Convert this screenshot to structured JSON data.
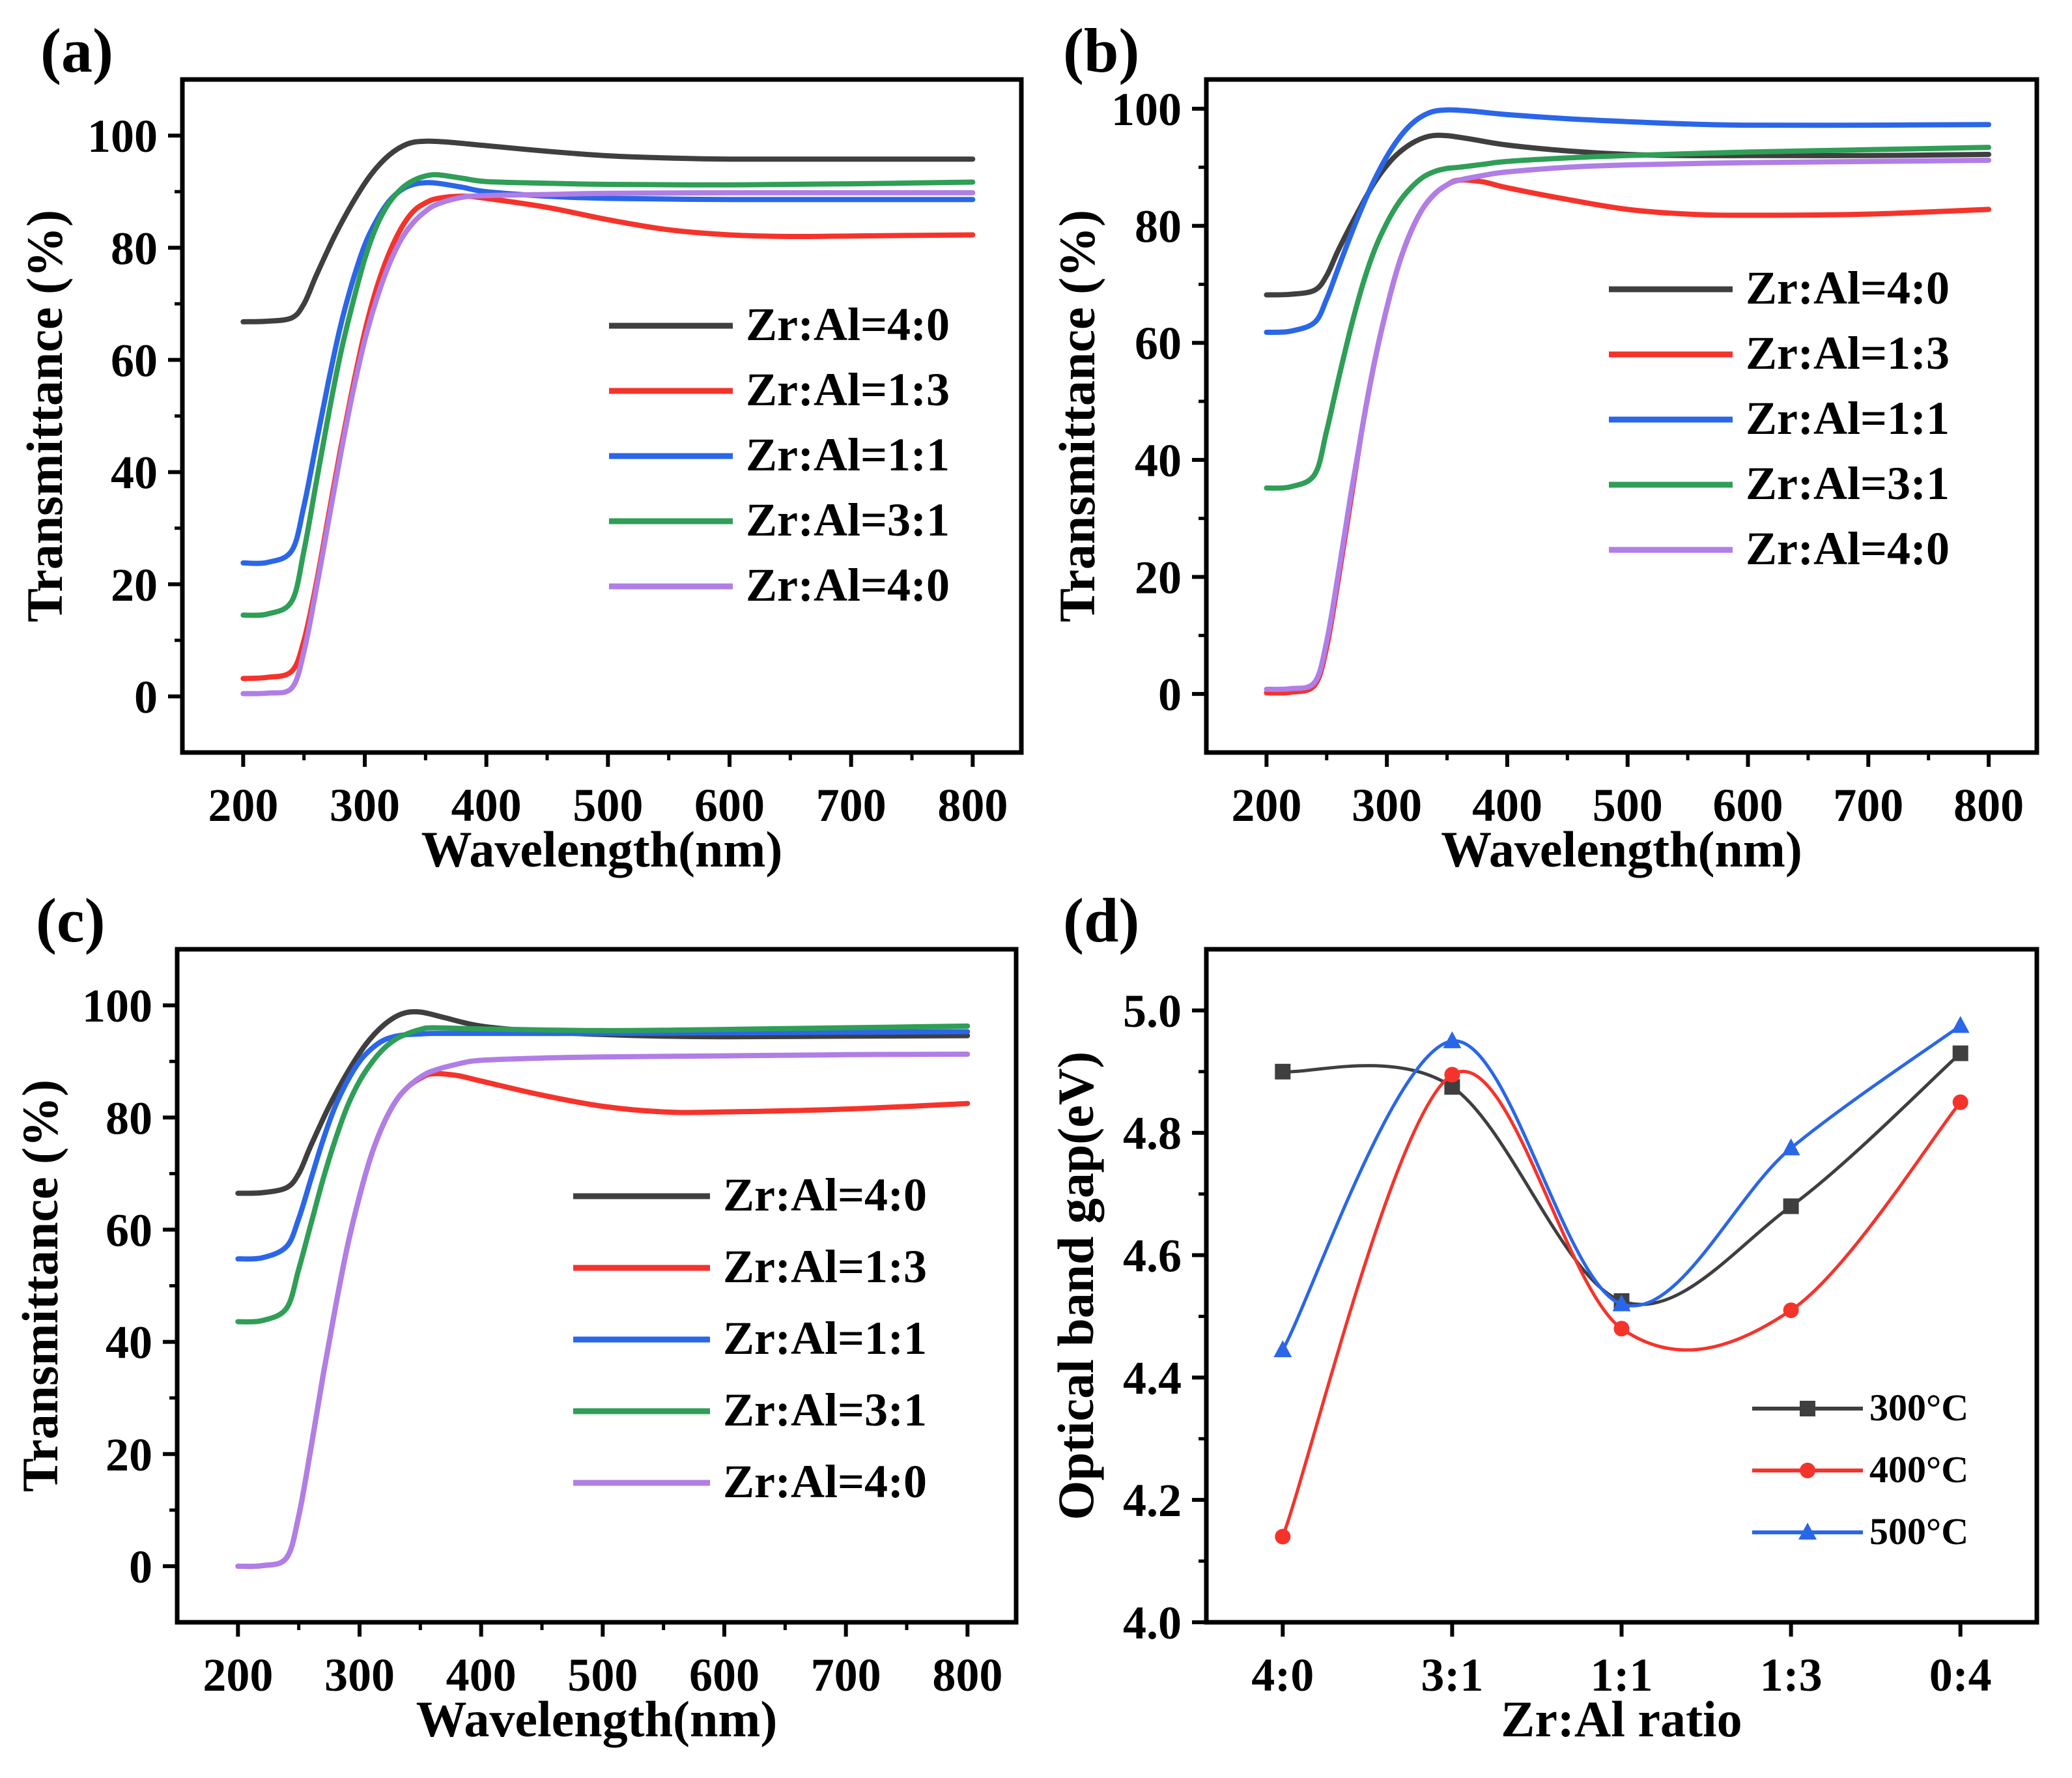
{
  "figure": {
    "colors": {
      "black": "#3f3f3f",
      "red": "#f5332b",
      "blue": "#2a66e8",
      "green": "#2f9e56",
      "purple": "#b07ee6"
    }
  },
  "chart_data": [
    {
      "panel": "(a)",
      "type": "line",
      "title": "",
      "xlabel": "Wavelength(nm)",
      "ylabel": "Transmittance (%)",
      "xlim": [
        150,
        840
      ],
      "ylim": [
        -10,
        110
      ],
      "xticks": [
        200,
        300,
        400,
        500,
        600,
        700,
        800
      ],
      "yticks": [
        0,
        20,
        40,
        60,
        80,
        100
      ],
      "legend_position": "center-right",
      "series": [
        {
          "name": "Zr:Al=4:0",
          "color": "black",
          "x": [
            200,
            220,
            240,
            250,
            260,
            275,
            290,
            305,
            320,
            335,
            350,
            370,
            400,
            450,
            500,
            550,
            600,
            700,
            800
          ],
          "y": [
            66.8,
            66.9,
            67.5,
            70,
            75,
            82,
            88,
            93,
            96.5,
            98.5,
            99,
            98.8,
            98.2,
            97.2,
            96.4,
            96,
            95.8,
            95.8,
            95.8
          ]
        },
        {
          "name": "Zr:Al=1:3",
          "color": "red",
          "x": [
            200,
            220,
            240,
            250,
            260,
            270,
            280,
            290,
            300,
            310,
            320,
            330,
            340,
            350,
            360,
            380,
            400,
            450,
            500,
            550,
            600,
            650,
            700,
            800
          ],
          "y": [
            3.2,
            3.4,
            4.5,
            10,
            20,
            32,
            44,
            55,
            65,
            73,
            79,
            83.5,
            86.5,
            88,
            88.8,
            89.2,
            88.8,
            87.2,
            85,
            83.2,
            82.3,
            82,
            82.1,
            82.3
          ]
        },
        {
          "name": "Zr:Al=1:1",
          "color": "blue",
          "x": [
            200,
            220,
            240,
            250,
            260,
            270,
            280,
            290,
            300,
            310,
            320,
            330,
            340,
            350,
            360,
            380,
            400,
            450,
            500,
            600,
            700,
            800
          ],
          "y": [
            23.8,
            23.9,
            26,
            34,
            45,
            56,
            66,
            74,
            80.5,
            85,
            88.3,
            90.3,
            91.3,
            91.6,
            91.5,
            90.8,
            90,
            89.2,
            88.8,
            88.6,
            88.6,
            88.6
          ]
        },
        {
          "name": "Zr:Al=3:1",
          "color": "green",
          "x": [
            200,
            220,
            240,
            250,
            260,
            270,
            280,
            290,
            300,
            310,
            320,
            330,
            340,
            350,
            360,
            380,
            400,
            450,
            500,
            600,
            700,
            800
          ],
          "y": [
            14.5,
            14.7,
            17,
            26,
            38,
            50,
            61,
            70,
            78,
            84,
            88,
            90.5,
            92,
            92.8,
            93,
            92.4,
            91.8,
            91.5,
            91.3,
            91.2,
            91.4,
            91.7
          ]
        },
        {
          "name": "Zr:Al=4:0",
          "color": "purple",
          "x": [
            200,
            220,
            240,
            250,
            260,
            270,
            280,
            290,
            300,
            310,
            320,
            330,
            340,
            350,
            360,
            380,
            400,
            450,
            500,
            600,
            700,
            800
          ],
          "y": [
            0.5,
            0.6,
            1.5,
            8,
            19,
            31,
            43,
            54,
            63.5,
            71,
            77,
            81.5,
            84.5,
            86.5,
            87.8,
            89,
            89.3,
            89.5,
            89.7,
            89.8,
            89.8,
            89.8
          ]
        }
      ]
    },
    {
      "panel": "(b)",
      "type": "line",
      "title": "",
      "xlabel": "Wavelength(nm)",
      "ylabel": "Transmittance (%)",
      "xlim": [
        150,
        840
      ],
      "ylim": [
        -10,
        105
      ],
      "xticks": [
        200,
        300,
        400,
        500,
        600,
        700,
        800
      ],
      "yticks": [
        0,
        20,
        40,
        60,
        80,
        100
      ],
      "legend_position": "center-right",
      "series": [
        {
          "name": "Zr:Al=4:0",
          "color": "black",
          "x": [
            200,
            220,
            240,
            250,
            260,
            275,
            290,
            305,
            320,
            335,
            350,
            370,
            400,
            450,
            500,
            550,
            600,
            700,
            800
          ],
          "y": [
            68.2,
            68.3,
            69,
            71.5,
            76,
            82,
            87.5,
            91.5,
            94,
            95.3,
            95.4,
            94.8,
            93.8,
            92.8,
            92.2,
            92,
            92,
            92,
            92.2
          ]
        },
        {
          "name": "Zr:Al=1:3",
          "color": "red",
          "x": [
            200,
            220,
            240,
            250,
            260,
            270,
            280,
            290,
            300,
            310,
            320,
            330,
            340,
            350,
            360,
            380,
            400,
            450,
            500,
            550,
            600,
            700,
            800
          ],
          "y": [
            0.2,
            0.3,
            1.5,
            8,
            20,
            33,
            46,
            57,
            66,
            73.5,
            79,
            83,
            85.5,
            87,
            87.8,
            87.5,
            86.5,
            84.5,
            82.8,
            82,
            81.8,
            82,
            82.8
          ]
        },
        {
          "name": "Zr:Al=1:1",
          "color": "blue",
          "x": [
            200,
            220,
            240,
            250,
            260,
            275,
            290,
            305,
            320,
            335,
            350,
            370,
            400,
            450,
            500,
            550,
            600,
            700,
            800
          ],
          "y": [
            61.8,
            62,
            63.5,
            67.5,
            73,
            81,
            88,
            93.5,
            97.3,
            99.3,
            99.8,
            99.6,
            99,
            98.3,
            97.8,
            97.4,
            97.2,
            97.2,
            97.3
          ]
        },
        {
          "name": "Zr:Al=3:1",
          "color": "green",
          "x": [
            200,
            220,
            240,
            250,
            260,
            270,
            280,
            290,
            300,
            310,
            320,
            330,
            340,
            350,
            360,
            380,
            400,
            450,
            500,
            600,
            700,
            800
          ],
          "y": [
            35.2,
            35.4,
            37.5,
            45,
            54,
            62.5,
            70,
            76,
            80.5,
            84,
            86.5,
            88.3,
            89.3,
            89.8,
            90,
            90.5,
            91,
            91.6,
            92,
            92.6,
            93,
            93.4
          ]
        },
        {
          "name": "Zr:Al=4:0",
          "color": "purple",
          "x": [
            200,
            220,
            240,
            250,
            260,
            270,
            280,
            290,
            300,
            310,
            320,
            330,
            340,
            350,
            360,
            380,
            400,
            450,
            500,
            600,
            700,
            800
          ],
          "y": [
            0.8,
            0.9,
            2,
            9,
            21,
            34,
            46,
            57,
            66,
            73.5,
            79,
            83,
            85.5,
            87,
            87.8,
            88.6,
            89.2,
            90,
            90.4,
            90.8,
            91,
            91.2
          ]
        }
      ]
    },
    {
      "panel": "(c)",
      "type": "line",
      "title": "",
      "xlabel": "Wavelength(nm)",
      "ylabel": "Transmittance (%)",
      "xlim": [
        150,
        840
      ],
      "ylim": [
        -10,
        110
      ],
      "xticks": [
        200,
        300,
        400,
        500,
        600,
        700,
        800
      ],
      "yticks": [
        0,
        20,
        40,
        60,
        80,
        100
      ],
      "legend_position": "center-right",
      "series": [
        {
          "name": "Zr:Al=4:0",
          "color": "black",
          "x": [
            200,
            220,
            240,
            250,
            260,
            275,
            290,
            305,
            320,
            335,
            350,
            370,
            400,
            450,
            500,
            550,
            600,
            700,
            800
          ],
          "y": [
            66.5,
            66.6,
            67.5,
            70,
            75,
            82,
            88,
            93,
            96.5,
            98.5,
            98.8,
            97.8,
            96.3,
            95.3,
            94.8,
            94.5,
            94.4,
            94.5,
            94.6
          ]
        },
        {
          "name": "Zr:Al=1:3",
          "color": "red",
          "x": [
            200,
            220,
            240,
            250,
            260,
            270,
            280,
            290,
            300,
            310,
            320,
            330,
            340,
            350,
            360,
            380,
            400,
            450,
            500,
            550,
            600,
            700,
            800
          ],
          "y": [
            0,
            0.1,
            1.5,
            9,
            21,
            34,
            46,
            57,
            66,
            73.5,
            79,
            83,
            85.5,
            87,
            87.8,
            87.5,
            86.5,
            84,
            82,
            81,
            81,
            81.5,
            82.5
          ]
        },
        {
          "name": "Zr:Al=1:1",
          "color": "blue",
          "x": [
            200,
            220,
            240,
            250,
            260,
            270,
            280,
            290,
            300,
            310,
            320,
            330,
            340,
            350,
            360,
            400,
            500,
            600,
            700,
            800
          ],
          "y": [
            54.8,
            55,
            57,
            62,
            69,
            76,
            82,
            86.5,
            90,
            92.3,
            93.8,
            94.5,
            94.8,
            94.9,
            95,
            95,
            95,
            95.1,
            95.2,
            95.3
          ]
        },
        {
          "name": "Zr:Al=3:1",
          "color": "green",
          "x": [
            200,
            220,
            240,
            250,
            260,
            270,
            280,
            290,
            300,
            310,
            320,
            330,
            340,
            350,
            360,
            400,
            500,
            600,
            700,
            800
          ],
          "y": [
            43.6,
            43.8,
            46,
            53,
            61,
            69,
            76,
            82,
            86.5,
            89.8,
            92.3,
            94,
            95,
            95.7,
            96,
            95.8,
            95.5,
            95.7,
            96,
            96.3
          ]
        },
        {
          "name": "Zr:Al=4:0",
          "color": "purple",
          "x": [
            200,
            220,
            240,
            250,
            260,
            270,
            280,
            290,
            300,
            310,
            320,
            330,
            340,
            350,
            360,
            380,
            400,
            450,
            500,
            600,
            700,
            800
          ],
          "y": [
            0,
            0.1,
            1.5,
            9,
            21,
            34,
            46,
            57,
            66,
            73.5,
            79,
            83,
            85.5,
            87.2,
            88.3,
            89.5,
            90.2,
            90.6,
            90.8,
            91,
            91.2,
            91.3
          ]
        }
      ]
    },
    {
      "panel": "(d)",
      "type": "line",
      "title": "",
      "xlabel": "Zr:Al ratio",
      "ylabel": "Optical band gap(eV)",
      "categories": [
        "4:0",
        "3:1",
        "1:1",
        "1:3",
        "0:4"
      ],
      "ylim": [
        4.0,
        5.1
      ],
      "yticks": [
        "4.0",
        "4.2",
        "4.4",
        "4.6",
        "4.8",
        "5.0"
      ],
      "legend_position": "bottom-right",
      "series": [
        {
          "name": "300°C",
          "color": "black",
          "marker": "square",
          "values": [
            4.9,
            4.875,
            4.525,
            4.68,
            4.93
          ]
        },
        {
          "name": "400°C",
          "color": "red",
          "marker": "circle",
          "values": [
            4.14,
            4.895,
            4.48,
            4.51,
            4.85
          ]
        },
        {
          "name": "500°C",
          "color": "blue",
          "marker": "triangle",
          "values": [
            4.445,
            4.95,
            4.52,
            4.775,
            4.975
          ]
        }
      ]
    }
  ]
}
